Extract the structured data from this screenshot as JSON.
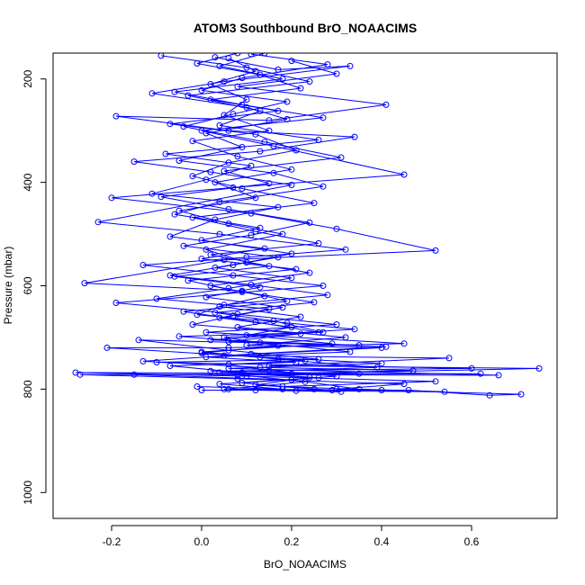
{
  "chart_data": {
    "type": "line",
    "title": "ATOM3 Southbound BrO_NOAACIMS",
    "xlabel": "BrO_NOAACIMS",
    "ylabel": "Pressure (mbar)",
    "xlim": [
      -0.33,
      0.79
    ],
    "ylim": [
      1050,
      150
    ],
    "y_reversed": true,
    "x_ticks": [
      -0.2,
      0.0,
      0.2,
      0.4,
      0.6
    ],
    "x_tick_labels": [
      "-0.2",
      "0.0",
      "0.2",
      "0.4",
      "0.6"
    ],
    "y_ticks": [
      200,
      400,
      600,
      800,
      1000
    ],
    "y_tick_labels": [
      "200",
      "400",
      "600",
      "800",
      "1000"
    ],
    "grid": false,
    "series": [
      {
        "color": "#0000ff",
        "marker": "open-circle",
        "points": [
          [
            0.06,
            160
          ],
          [
            0.12,
            185
          ],
          [
            0.02,
            210
          ],
          [
            0.1,
            240
          ],
          [
            0.05,
            270
          ],
          [
            0.15,
            300
          ],
          [
            -0.02,
            320
          ],
          [
            0.08,
            350
          ],
          [
            0.2,
            375
          ],
          [
            0.03,
            400
          ],
          [
            0.12,
            430
          ],
          [
            -0.05,
            455
          ],
          [
            0.06,
            480
          ],
          [
            0.18,
            500
          ],
          [
            0.01,
            530
          ],
          [
            0.1,
            555
          ],
          [
            0.24,
            575
          ],
          [
            0.02,
            600
          ],
          [
            0.14,
            620
          ],
          [
            0.04,
            640
          ],
          [
            0.22,
            660
          ],
          [
            0.08,
            680
          ],
          [
            0.32,
            700
          ],
          [
            0.1,
            715
          ],
          [
            0.4,
            720
          ],
          [
            0.05,
            735
          ],
          [
            0.55,
            740
          ],
          [
            0.15,
            755
          ],
          [
            0.75,
            760
          ],
          [
            0.2,
            770
          ],
          [
            0.62,
            770
          ],
          [
            -0.27,
            772
          ],
          [
            0.08,
            780
          ],
          [
            0.45,
            790
          ],
          [
            0.3,
            800
          ],
          [
            0.71,
            810
          ],
          [
            0.64,
            812
          ],
          [
            0.46,
            802
          ],
          [
            0.0,
            802
          ]
        ]
      },
      {
        "color": "#0000ff",
        "marker": "open-circle",
        "points": [
          [
            0.14,
            150
          ],
          [
            0.04,
            175
          ],
          [
            0.18,
            200
          ],
          [
            -0.06,
            225
          ],
          [
            0.09,
            250
          ],
          [
            0.27,
            275
          ],
          [
            0.0,
            300
          ],
          [
            0.16,
            330
          ],
          [
            0.45,
            385
          ],
          [
            0.07,
            410
          ],
          [
            -0.2,
            430
          ],
          [
            0.11,
            460
          ],
          [
            0.3,
            490
          ],
          [
            0.52,
            532
          ],
          [
            0.05,
            550
          ],
          [
            -0.26,
            595
          ],
          [
            0.09,
            610
          ],
          [
            0.19,
            630
          ],
          [
            -0.04,
            650
          ],
          [
            0.12,
            670
          ],
          [
            0.26,
            690
          ],
          [
            0.02,
            705
          ],
          [
            0.35,
            715
          ],
          [
            -0.14,
            705
          ],
          [
            0.06,
            725
          ],
          [
            0.26,
            742
          ],
          [
            -0.1,
            748
          ],
          [
            0.6,
            760
          ],
          [
            0.02,
            765
          ],
          [
            0.35,
            770
          ],
          [
            -0.28,
            768
          ],
          [
            0.1,
            775
          ],
          [
            0.52,
            785
          ],
          [
            0.18,
            795
          ],
          [
            0.4,
            802
          ],
          [
            0.06,
            800
          ],
          [
            0.31,
            805
          ],
          [
            0.12,
            802
          ]
        ]
      },
      {
        "color": "#0000ff",
        "marker": "open-circle",
        "points": [
          [
            0.2,
            165
          ],
          [
            0.3,
            190
          ],
          [
            0.08,
            215
          ],
          [
            0.41,
            250
          ],
          [
            0.15,
            280
          ],
          [
            -0.19,
            272
          ],
          [
            0.06,
            300
          ],
          [
            0.34,
            312
          ],
          [
            0.13,
            340
          ],
          [
            -0.15,
            360
          ],
          [
            0.02,
            380
          ],
          [
            0.2,
            405
          ],
          [
            -0.23,
            477
          ],
          [
            0.04,
            500
          ],
          [
            0.32,
            530
          ],
          [
            0.1,
            545
          ],
          [
            -0.13,
            560
          ],
          [
            0.07,
            580
          ],
          [
            0.27,
            600
          ],
          [
            -0.19,
            633
          ],
          [
            0.08,
            655
          ],
          [
            0.3,
            675
          ],
          [
            0.01,
            690
          ],
          [
            0.45,
            712
          ],
          [
            0.06,
            720
          ],
          [
            -0.21,
            720
          ],
          [
            0.13,
            738
          ],
          [
            0.4,
            750
          ],
          [
            0.06,
            760
          ],
          [
            0.66,
            773
          ],
          [
            -0.15,
            772
          ],
          [
            0.2,
            782
          ],
          [
            0.35,
            800
          ],
          [
            0.54,
            805
          ],
          [
            0.21,
            803
          ]
        ]
      },
      {
        "color": "#0000ff",
        "marker": "open-circle",
        "points": [
          [
            -0.09,
            155
          ],
          [
            0.1,
            178
          ],
          [
            0.24,
            205
          ],
          [
            -0.03,
            232
          ],
          [
            0.13,
            262
          ],
          [
            0.04,
            290
          ],
          [
            0.26,
            318
          ],
          [
            -0.08,
            345
          ],
          [
            0.11,
            368
          ],
          [
            0.01,
            395
          ],
          [
            -0.11,
            422
          ],
          [
            0.17,
            448
          ],
          [
            0.03,
            472
          ],
          [
            -0.07,
            505
          ],
          [
            0.14,
            528
          ],
          [
            0.0,
            548
          ],
          [
            0.21,
            568
          ],
          [
            -0.03,
            590
          ],
          [
            0.09,
            612
          ],
          [
            0.25,
            632
          ],
          [
            0.03,
            652
          ],
          [
            0.16,
            668
          ],
          [
            0.27,
            690
          ],
          [
            -0.05,
            698
          ],
          [
            0.13,
            710
          ],
          [
            0.33,
            728
          ],
          [
            0.01,
            738
          ],
          [
            0.21,
            748
          ],
          [
            -0.07,
            755
          ],
          [
            0.09,
            768
          ],
          [
            0.26,
            778
          ],
          [
            0.04,
            790
          ],
          [
            0.18,
            800
          ],
          [
            -0.01,
            795
          ]
        ]
      },
      {
        "color": "#0000ff",
        "marker": "open-circle",
        "points": [
          [
            0.11,
            152
          ],
          [
            0.28,
            172
          ],
          [
            0.09,
            198
          ],
          [
            0.0,
            222
          ],
          [
            0.19,
            244
          ],
          [
            0.07,
            268
          ],
          [
            -0.04,
            292
          ],
          [
            0.14,
            322
          ],
          [
            0.31,
            352
          ],
          [
            0.05,
            378
          ],
          [
            0.15,
            402
          ],
          [
            -0.09,
            428
          ],
          [
            0.06,
            452
          ],
          [
            0.24,
            478
          ],
          [
            0.11,
            502
          ],
          [
            -0.04,
            523
          ],
          [
            0.17,
            545
          ],
          [
            0.03,
            565
          ],
          [
            0.2,
            585
          ],
          [
            0.06,
            605
          ],
          [
            -0.1,
            625
          ],
          [
            0.15,
            645
          ],
          [
            0.04,
            662
          ],
          [
            0.2,
            680
          ],
          [
            0.1,
            696
          ],
          [
            0.29,
            712
          ],
          [
            0.0,
            728
          ],
          [
            0.17,
            742
          ],
          [
            0.39,
            758
          ],
          [
            0.04,
            768
          ],
          [
            0.24,
            777
          ],
          [
            0.12,
            792
          ],
          [
            0.29,
            802
          ]
        ]
      },
      {
        "color": "#0000ff",
        "marker": "open-circle",
        "points": [
          [
            0.08,
            150
          ],
          [
            -0.01,
            170
          ],
          [
            0.13,
            192
          ],
          [
            0.22,
            218
          ],
          [
            0.02,
            240
          ],
          [
            0.17,
            262
          ],
          [
            -0.07,
            287
          ],
          [
            0.12,
            307
          ],
          [
            0.21,
            338
          ],
          [
            0.06,
            362
          ],
          [
            -0.02,
            388
          ],
          [
            0.09,
            412
          ],
          [
            0.25,
            440
          ],
          [
            -0.02,
            468
          ],
          [
            0.12,
            495
          ],
          [
            0.26,
            518
          ],
          [
            0.02,
            540
          ],
          [
            0.15,
            562
          ],
          [
            -0.06,
            582
          ],
          [
            0.13,
            603
          ],
          [
            0.01,
            622
          ],
          [
            0.18,
            642
          ],
          [
            0.07,
            658
          ],
          [
            -0.02,
            675
          ],
          [
            0.22,
            693
          ],
          [
            0.06,
            708
          ],
          [
            0.41,
            718
          ],
          [
            0.11,
            732
          ],
          [
            -0.13,
            746
          ],
          [
            0.13,
            758
          ],
          [
            0.47,
            764
          ],
          [
            0.08,
            772
          ],
          [
            0.23,
            786
          ],
          [
            0.05,
            800
          ]
        ]
      },
      {
        "color": "#0000ff",
        "marker": "open-circle",
        "points": [
          [
            0.03,
            158
          ],
          [
            0.17,
            182
          ],
          [
            0.33,
            175
          ],
          [
            0.05,
            205
          ],
          [
            -0.11,
            228
          ],
          [
            0.1,
            255
          ],
          [
            0.19,
            278
          ],
          [
            0.01,
            305
          ],
          [
            0.09,
            332
          ],
          [
            -0.05,
            358
          ],
          [
            0.16,
            382
          ],
          [
            0.27,
            408
          ],
          [
            0.04,
            438
          ],
          [
            -0.06,
            462
          ],
          [
            0.13,
            488
          ],
          [
            0.0,
            512
          ],
          [
            0.2,
            538
          ],
          [
            0.07,
            560
          ],
          [
            -0.07,
            580
          ],
          [
            0.11,
            598
          ],
          [
            0.28,
            618
          ],
          [
            0.05,
            637
          ],
          [
            -0.01,
            656
          ],
          [
            0.19,
            672
          ],
          [
            0.34,
            684
          ],
          [
            0.05,
            700
          ],
          [
            0.17,
            716
          ],
          [
            0.0,
            730
          ],
          [
            0.23,
            745
          ],
          [
            0.06,
            752
          ],
          [
            0.15,
            764
          ],
          [
            0.3,
            775
          ],
          [
            0.09,
            788
          ],
          [
            0.25,
            800
          ]
        ]
      }
    ]
  }
}
